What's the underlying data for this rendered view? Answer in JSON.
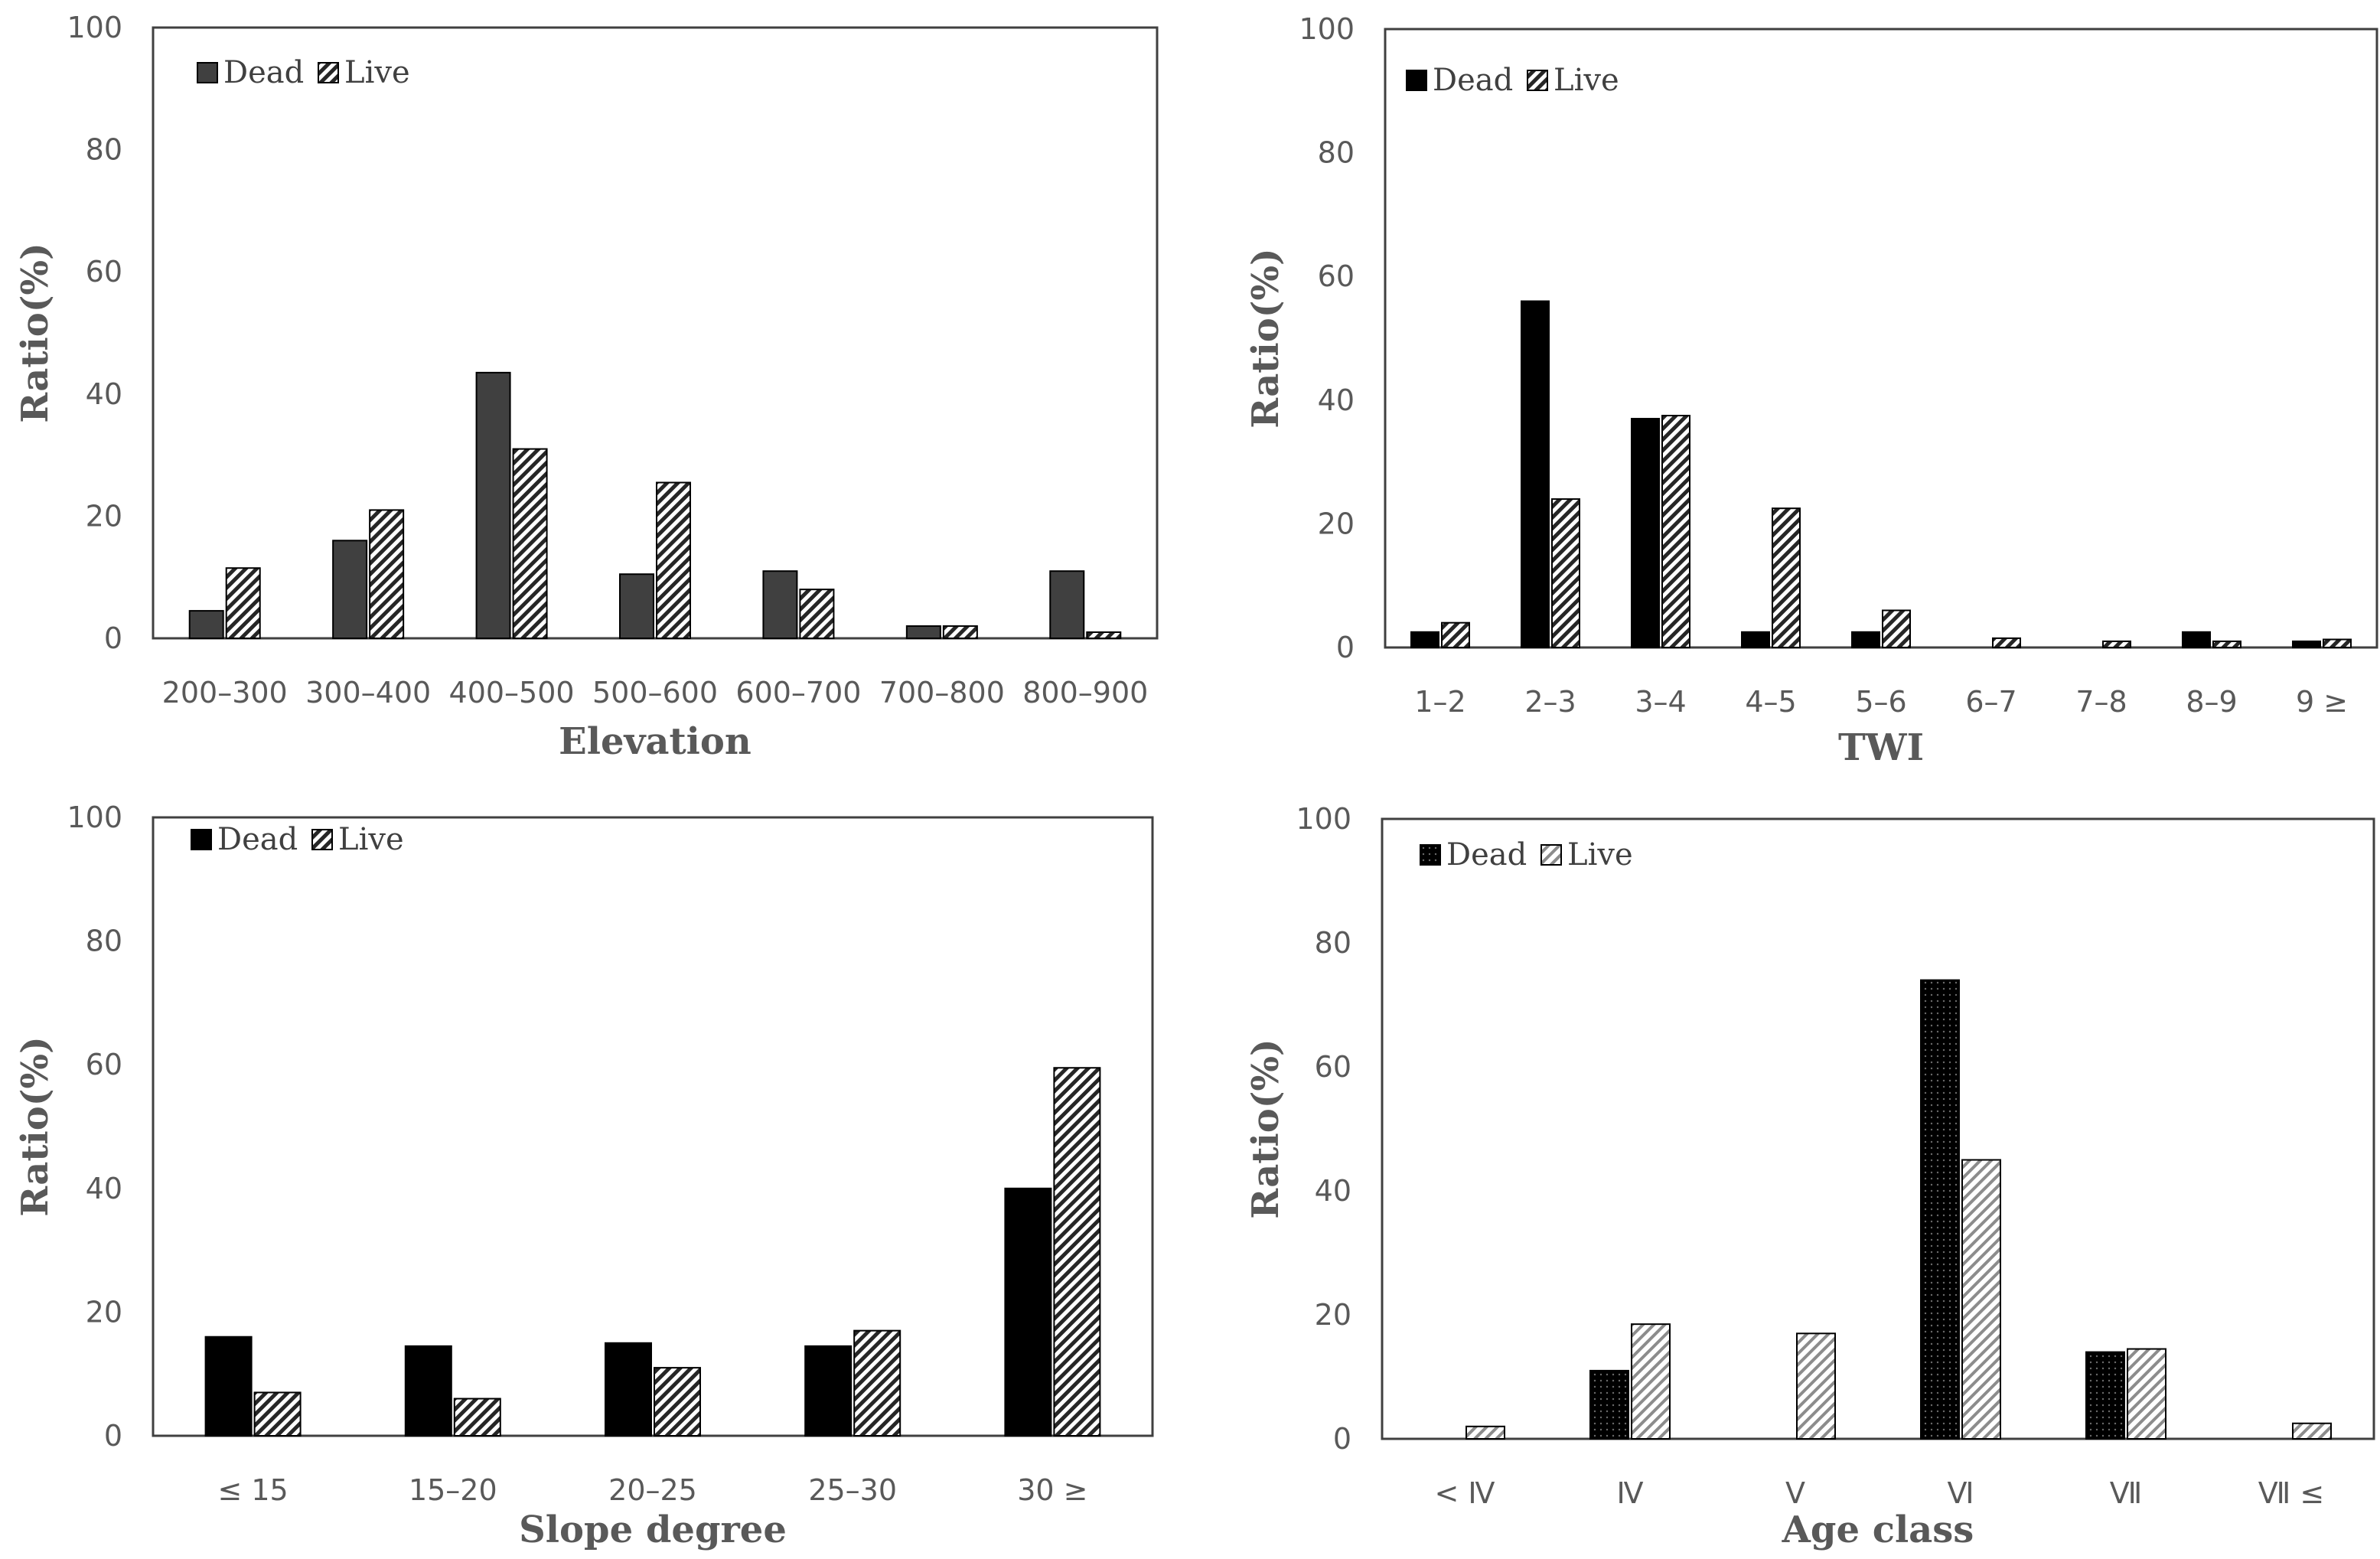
{
  "colors": {
    "dead_elevation": "#404040",
    "dead_other": "#000000",
    "axis": "#404040",
    "tick_text": "#595959"
  },
  "chart_data": [
    {
      "type": "bar",
      "id": "elevation",
      "xlabel": "Elevation",
      "ylabel": "Ratio(%)",
      "ylim": [
        0,
        100
      ],
      "yticks": [
        0,
        20,
        40,
        60,
        80,
        100
      ],
      "legend": [
        "Dead",
        "Live"
      ],
      "legend_position": "top-left",
      "categories": [
        "200–300",
        "300–400",
        "400–500",
        "500–600",
        "600–700",
        "700–800",
        "800–900"
      ],
      "series": [
        {
          "name": "Dead",
          "values": [
            4.5,
            16,
            43.5,
            10.5,
            11,
            2,
            11
          ]
        },
        {
          "name": "Live",
          "values": [
            11.5,
            21,
            31,
            25.5,
            8,
            2,
            1
          ]
        }
      ]
    },
    {
      "type": "bar",
      "id": "twi",
      "xlabel": "TWI",
      "ylabel": "Ratio(%)",
      "ylim": [
        0,
        100
      ],
      "yticks": [
        0,
        20,
        40,
        60,
        80,
        100
      ],
      "legend": [
        "Dead",
        "Live"
      ],
      "legend_position": "top-left",
      "categories": [
        "1–2",
        "2–3",
        "3–4",
        "4–5",
        "5–6",
        "6–7",
        "7–8",
        "8–9",
        "9 ≥"
      ],
      "series": [
        {
          "name": "Dead",
          "values": [
            2.5,
            56,
            37,
            2.5,
            2.5,
            0,
            0,
            2.5,
            1
          ]
        },
        {
          "name": "Live",
          "values": [
            4,
            24,
            37.5,
            22.5,
            6,
            1.5,
            1,
            1,
            1.3
          ]
        }
      ]
    },
    {
      "type": "bar",
      "id": "slope",
      "xlabel": "Slope degree",
      "ylabel": "Ratio(%)",
      "ylim": [
        0,
        100
      ],
      "yticks": [
        0,
        20,
        40,
        60,
        80,
        100
      ],
      "legend": [
        "Dead",
        "Live"
      ],
      "legend_position": "top-left",
      "categories": [
        "≤ 15",
        "15–20",
        "20–25",
        "25–30",
        "30 ≥"
      ],
      "series": [
        {
          "name": "Dead",
          "values": [
            16,
            14.5,
            15,
            14.5,
            40
          ]
        },
        {
          "name": "Live",
          "values": [
            7,
            6,
            11,
            17,
            59.5
          ]
        }
      ]
    },
    {
      "type": "bar",
      "id": "age",
      "xlabel": "Age class",
      "ylabel": "Ratio(%)",
      "ylim": [
        0,
        100
      ],
      "yticks": [
        0,
        20,
        40,
        60,
        80,
        100
      ],
      "legend": [
        "Dead",
        "Live"
      ],
      "legend_position": "top-left",
      "categories": [
        "< Ⅳ",
        "Ⅳ",
        "Ⅴ",
        "Ⅵ",
        "Ⅶ",
        "Ⅶ ≤"
      ],
      "series": [
        {
          "name": "Dead",
          "values": [
            0,
            11,
            0,
            74,
            14,
            0
          ]
        },
        {
          "name": "Live",
          "values": [
            2,
            18.5,
            17,
            45,
            14.5,
            2.5
          ]
        }
      ]
    }
  ]
}
